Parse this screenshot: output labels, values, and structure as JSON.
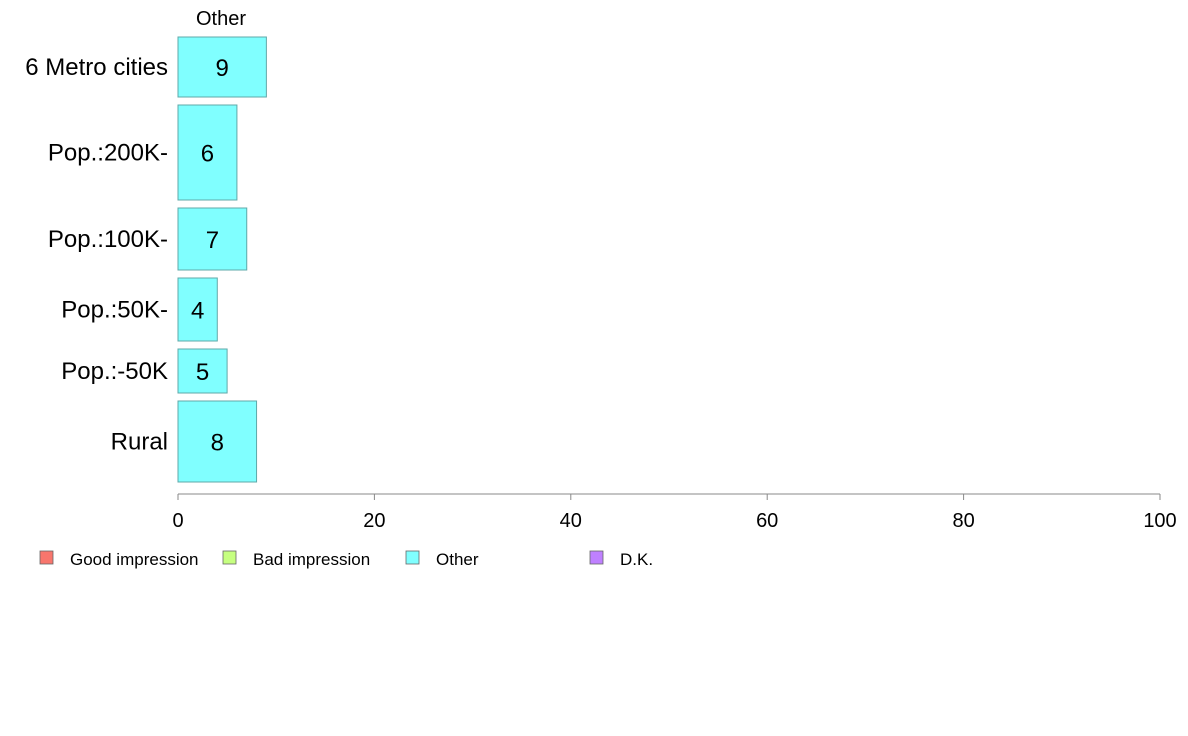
{
  "chart_data": {
    "type": "bar",
    "orientation": "horizontal",
    "panel_label": "Other",
    "categories": [
      "6 Metro cities",
      "Pop.:200K-",
      "Pop.:100K-",
      "Pop.:50K-",
      "Pop.:-50K",
      "Rural"
    ],
    "series": [
      {
        "name": "Other",
        "values": [
          9,
          6,
          7,
          4,
          5,
          8
        ],
        "color": "#80ffff"
      }
    ],
    "data_labels": [
      "9",
      "6",
      "7",
      "4",
      "5",
      "8"
    ],
    "xlim": [
      0,
      100
    ],
    "x_ticks": [
      0,
      20,
      40,
      60,
      80,
      100
    ],
    "xlabel": "",
    "ylabel": "",
    "grid": false,
    "legend": {
      "placement": "bottom-left",
      "items": [
        {
          "label": "Good impression",
          "color": "#f8766d"
        },
        {
          "label": "Bad impression",
          "color": "#c6ff80"
        },
        {
          "label": "Other",
          "color": "#80ffff"
        },
        {
          "label": "D.K.",
          "color": "#bf80ff"
        }
      ]
    },
    "bar_border_color": "#5fa8a8",
    "axis_color": "#888888"
  }
}
